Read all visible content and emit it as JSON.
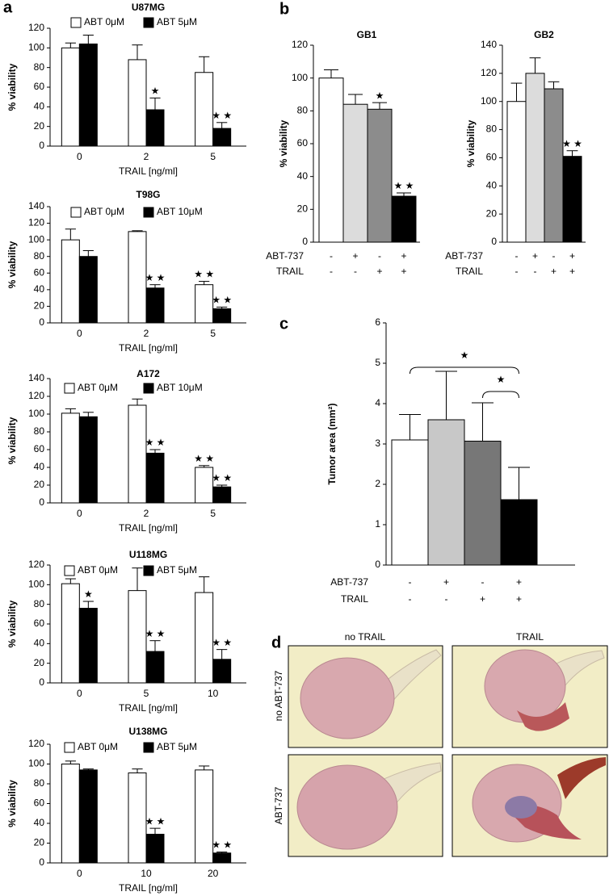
{
  "chart_data": [
    {
      "type": "bar",
      "panel_label": "a",
      "title": "U87MG",
      "categories": [
        "0",
        "2",
        "5"
      ],
      "x_label": "TRAIL [ng/ml]",
      "y_label": "% viability",
      "ylim": [
        0,
        120
      ],
      "yticks": [
        0,
        20,
        40,
        60,
        80,
        100,
        120
      ],
      "series": [
        {
          "name": "ABT 0μM",
          "color": "#ffffff",
          "values": [
            100,
            88,
            75
          ],
          "errors": [
            5,
            15,
            16
          ],
          "markers": [
            null,
            null,
            null
          ]
        },
        {
          "name": "ABT 5μM",
          "color": "#000000",
          "values": [
            104,
            37,
            18
          ],
          "errors": [
            9,
            12,
            6
          ],
          "markers": [
            null,
            "★",
            "★ ★"
          ]
        }
      ]
    },
    {
      "type": "bar",
      "title": "T98G",
      "categories": [
        "0",
        "2",
        "5"
      ],
      "x_label": "TRAIL [ng/ml]",
      "y_label": "% viability",
      "ylim": [
        0,
        140
      ],
      "yticks": [
        0,
        20,
        40,
        60,
        80,
        100,
        120,
        140
      ],
      "series": [
        {
          "name": "ABT 0μM",
          "color": "#ffffff",
          "values": [
            100,
            110,
            46
          ],
          "errors": [
            13,
            1,
            4
          ],
          "markers": [
            null,
            null,
            "★ ★"
          ]
        },
        {
          "name": "ABT 10μM",
          "color": "#000000",
          "values": [
            80,
            42,
            17
          ],
          "errors": [
            7,
            4,
            2
          ],
          "markers": [
            null,
            "★ ★",
            "★ ★"
          ]
        }
      ]
    },
    {
      "type": "bar",
      "title": "A172",
      "categories": [
        "0",
        "2",
        "5"
      ],
      "x_label": "TRAIL [ng/ml]",
      "y_label": "% viability",
      "ylim": [
        0,
        140
      ],
      "yticks": [
        0,
        20,
        40,
        60,
        80,
        100,
        120,
        140
      ],
      "series": [
        {
          "name": "ABT 0μM",
          "color": "#ffffff",
          "values": [
            101,
            110,
            40
          ],
          "errors": [
            5,
            7,
            2
          ],
          "markers": [
            null,
            null,
            "★ ★"
          ]
        },
        {
          "name": "ABT 10μM",
          "color": "#000000",
          "values": [
            97,
            56,
            18
          ],
          "errors": [
            5,
            4,
            2
          ],
          "markers": [
            null,
            "★ ★",
            "★ ★"
          ]
        }
      ]
    },
    {
      "type": "bar",
      "title": "U118MG",
      "categories": [
        "0",
        "5",
        "10"
      ],
      "x_label": "TRAIL [ng/ml]",
      "y_label": "% viability",
      "ylim": [
        0,
        120
      ],
      "yticks": [
        0,
        20,
        40,
        60,
        80,
        100,
        120
      ],
      "series": [
        {
          "name": "ABT 0μM",
          "color": "#ffffff",
          "values": [
            101,
            94,
            92
          ],
          "errors": [
            5,
            23,
            16
          ],
          "markers": [
            null,
            null,
            null
          ]
        },
        {
          "name": "ABT 5μM",
          "color": "#000000",
          "values": [
            76,
            32,
            24
          ],
          "errors": [
            7,
            11,
            10
          ],
          "markers": [
            "★",
            "★ ★",
            "★ ★"
          ]
        }
      ]
    },
    {
      "type": "bar",
      "title": "U138MG",
      "categories": [
        "0",
        "10",
        "20"
      ],
      "x_label": "TRAIL [ng/ml]",
      "y_label": "% viability",
      "ylim": [
        0,
        120
      ],
      "yticks": [
        0,
        20,
        40,
        60,
        80,
        100,
        120
      ],
      "series": [
        {
          "name": "ABT 0μM",
          "color": "#ffffff",
          "values": [
            100,
            91,
            94
          ],
          "errors": [
            3,
            4,
            4
          ],
          "markers": [
            null,
            null,
            null
          ]
        },
        {
          "name": "ABT 5μM",
          "color": "#000000",
          "values": [
            94,
            29,
            10
          ],
          "errors": [
            1,
            6,
            1
          ],
          "markers": [
            null,
            "★ ★",
            "★ ★"
          ]
        }
      ]
    },
    {
      "type": "bar",
      "panel_label": "b",
      "title": "GB1",
      "y_label": "% viability",
      "ylim": [
        0,
        120
      ],
      "yticks": [
        0,
        20,
        40,
        60,
        80,
        100,
        120
      ],
      "colors": [
        "#ffffff",
        "#dcdcdc",
        "#8c8c8c",
        "#000000"
      ],
      "values": [
        100,
        84,
        81,
        28
      ],
      "errors": [
        5,
        6,
        4,
        2
      ],
      "markers": [
        null,
        null,
        "★",
        "★ ★"
      ],
      "row_labels": [
        "ABT-737",
        "TRAIL"
      ],
      "rows": [
        [
          "-",
          "+",
          "-",
          "+"
        ],
        [
          "-",
          "-",
          "+",
          "+"
        ]
      ]
    },
    {
      "type": "bar",
      "title": "GB2",
      "y_label": "% viability",
      "ylim": [
        0,
        140
      ],
      "yticks": [
        0,
        20,
        40,
        60,
        80,
        100,
        120,
        140
      ],
      "colors": [
        "#ffffff",
        "#dcdcdc",
        "#8c8c8c",
        "#000000"
      ],
      "values": [
        100,
        120,
        109,
        61
      ],
      "errors": [
        13,
        11,
        5,
        4
      ],
      "markers": [
        null,
        null,
        null,
        "★ ★"
      ],
      "row_labels": [
        "ABT-737",
        "TRAIL"
      ],
      "rows": [
        [
          "-",
          "+",
          "-",
          "+"
        ],
        [
          "-",
          "-",
          "+",
          "+"
        ]
      ]
    },
    {
      "type": "bar",
      "panel_label": "c",
      "y_label": "Tumor area (mm²)",
      "ylim": [
        0,
        6
      ],
      "yticks": [
        0,
        1,
        2,
        3,
        4,
        5,
        6
      ],
      "colors": [
        "#ffffff",
        "#c8c8c8",
        "#777777",
        "#000000"
      ],
      "values": [
        3.1,
        3.6,
        3.07,
        1.62
      ],
      "errors": [
        0.63,
        1.2,
        0.95,
        0.8
      ],
      "markers": [
        null,
        null,
        null,
        null
      ],
      "row_labels": [
        "ABT-737",
        "TRAIL"
      ],
      "rows": [
        [
          "-",
          "+",
          "-",
          "+"
        ],
        [
          "-",
          "-",
          "+",
          "+"
        ]
      ],
      "comparison_marks": [
        "★",
        "★"
      ]
    }
  ],
  "images": {
    "panel_label": "d",
    "columns": [
      "no TRAIL",
      "TRAIL"
    ],
    "rows": [
      "no ABT-737",
      "ABT-737"
    ]
  }
}
